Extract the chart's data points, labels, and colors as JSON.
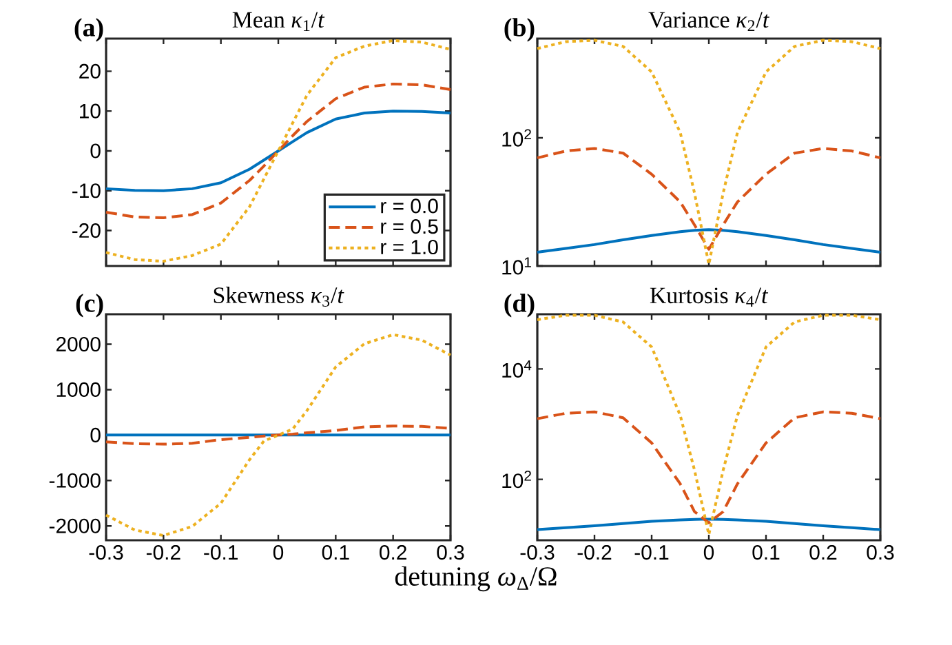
{
  "chart_data": [
    {
      "type": "line",
      "title": "Mean *κ*$_{1}$/*t*",
      "annotations": [
        "(a)"
      ],
      "x": [
        -0.3,
        -0.25,
        -0.2,
        -0.15,
        -0.1,
        -0.05,
        -0.025,
        0,
        0.025,
        0.05,
        0.1,
        0.15,
        0.2,
        0.25,
        0.3
      ],
      "xlim": [
        -0.3,
        0.3
      ],
      "xticks": [
        -0.3,
        -0.2,
        -0.1,
        0,
        0.1,
        0.2,
        0.3
      ],
      "ylim": [
        -28.9,
        28.2
      ],
      "yticks": [
        -20,
        -10,
        0,
        10,
        20
      ],
      "tick_labels": "y",
      "legend": "bottom right",
      "series": [
        {
          "name": "r = 0.0",
          "color": "#0072bd",
          "line_style": "solid",
          "values": [
            -9.5,
            -9.9,
            -10,
            -9.5,
            -8,
            -4.6,
            -2.3,
            0,
            2.3,
            4.6,
            8,
            9.5,
            10,
            9.9,
            9.5
          ]
        },
        {
          "name": "r = 0.5",
          "color": "#d95319",
          "line_style": "dashed",
          "values": [
            -15.4,
            -16.6,
            -16.8,
            -16,
            -13.1,
            -7.4,
            -3.8,
            0,
            3.8,
            7.4,
            13.1,
            16,
            16.8,
            16.6,
            15.4
          ]
        },
        {
          "name": "r = 1.0",
          "color": "#edb120",
          "line_style": "dotted",
          "values": [
            -25.5,
            -27.3,
            -27.7,
            -26.3,
            -23.4,
            -14,
            -7,
            0,
            7,
            14,
            23.4,
            26.3,
            27.7,
            27.3,
            25.5
          ]
        }
      ]
    },
    {
      "type": "line",
      "title": "Variance *κ*$_{2}$/*t*",
      "annotations": [
        "(b)"
      ],
      "x": [
        -0.3,
        -0.25,
        -0.2,
        -0.15,
        -0.1,
        -0.05,
        -0.025,
        0,
        0.025,
        0.05,
        0.1,
        0.15,
        0.2,
        0.25,
        0.3
      ],
      "xlim": [
        -0.3,
        0.3
      ],
      "xticks": [
        -0.3,
        -0.2,
        -0.1,
        0,
        0.1,
        0.2,
        0.3
      ],
      "ylim": [
        10,
        595
      ],
      "yticks": [
        {
          "value": 10,
          "label": "10$^{1}$"
        },
        {
          "value": 100,
          "label": "10$^{2}$"
        }
      ],
      "log": "y",
      "tick_labels": "y",
      "series": [
        {
          "color": "#0072bd",
          "line_style": "solid",
          "values": [
            12.8,
            13.7,
            14.7,
            16,
            17.3,
            18.5,
            19,
            19.2,
            19,
            18.5,
            17.3,
            16,
            14.7,
            13.7,
            12.8
          ]
        },
        {
          "color": "#d95319",
          "line_style": "dashed",
          "values": [
            69.8,
            79,
            82.6,
            76,
            52,
            31.6,
            20.9,
            13.5,
            20.9,
            31.6,
            52,
            76,
            82.6,
            79,
            69.8
          ]
        },
        {
          "color": "#edb120",
          "line_style": "dotted",
          "values": [
            497,
            563,
            577,
            517,
            327,
            110,
            37,
            10.3,
            37,
            110,
            327,
            517,
            577,
            563,
            497
          ]
        }
      ]
    },
    {
      "type": "line",
      "title": "Skewness *κ*$_{3}$/*t*",
      "annotations": [
        "(c)"
      ],
      "xlabel": "detuning *ω*$_{Δ}$/Ω",
      "x": [
        -0.3,
        -0.25,
        -0.2,
        -0.15,
        -0.1,
        -0.05,
        -0.025,
        0,
        0.025,
        0.05,
        0.1,
        0.15,
        0.2,
        0.25,
        0.3
      ],
      "xlim": [
        -0.3,
        0.3
      ],
      "xticks": [
        -0.3,
        -0.2,
        -0.1,
        0,
        0.1,
        0.2,
        0.3
      ],
      "ylim": [
        -2315,
        2660
      ],
      "yticks": [
        -2000,
        -1000,
        0,
        1000,
        2000
      ],
      "series": [
        {
          "color": "#0072bd",
          "line_style": "solid",
          "values": [
            0,
            0,
            0,
            0,
            0,
            0,
            0,
            0,
            0,
            0,
            0,
            0,
            0,
            0,
            0
          ]
        },
        {
          "color": "#d95319",
          "line_style": "dashed",
          "values": [
            -150,
            -190,
            -200,
            -180,
            -100,
            -50,
            -20,
            0,
            20,
            50,
            100,
            180,
            200,
            190,
            150
          ]
        },
        {
          "color": "#edb120",
          "line_style": "dotted",
          "values": [
            -1760,
            -2090,
            -2210,
            -2010,
            -1500,
            -540,
            -130,
            0,
            130,
            540,
            1500,
            2010,
            2210,
            2090,
            1760
          ]
        }
      ]
    },
    {
      "type": "line",
      "title": "Kurtosis *κ*$_{4}$/*t*",
      "annotations": [
        "(d)"
      ],
      "x": [
        -0.3,
        -0.25,
        -0.2,
        -0.15,
        -0.1,
        -0.05,
        -0.025,
        0,
        0.025,
        0.05,
        0.1,
        0.15,
        0.2,
        0.25,
        0.3
      ],
      "xlim": [
        -0.3,
        0.3
      ],
      "xticks": [
        -0.3,
        -0.2,
        -0.1,
        0,
        0.1,
        0.2,
        0.3
      ],
      "ylim": [
        7.9,
        98000
      ],
      "yticks": [
        {
          "value": 100,
          "label": "10$^{2}$"
        },
        {
          "value": 10000,
          "label": "10$^{4}$"
        }
      ],
      "log": "y",
      "series": [
        {
          "color": "#0072bd",
          "line_style": "solid",
          "values": [
            12.3,
            13.3,
            14.4,
            15.9,
            17.4,
            18.5,
            18.9,
            19,
            18.9,
            18.5,
            17.4,
            15.9,
            14.4,
            13.3,
            12.3
          ]
        },
        {
          "color": "#d95319",
          "line_style": "dashed",
          "values": [
            1256,
            1578,
            1671,
            1305,
            458,
            83,
            26,
            16.4,
            26,
            83,
            458,
            1305,
            1671,
            1578,
            1256
          ]
        },
        {
          "color": "#edb120",
          "line_style": "dotted",
          "values": [
            78000,
            94000,
            94000,
            71000,
            25000,
            1436,
            146,
            10,
            146,
            1436,
            25000,
            71000,
            94000,
            94000,
            78000
          ]
        }
      ]
    }
  ]
}
